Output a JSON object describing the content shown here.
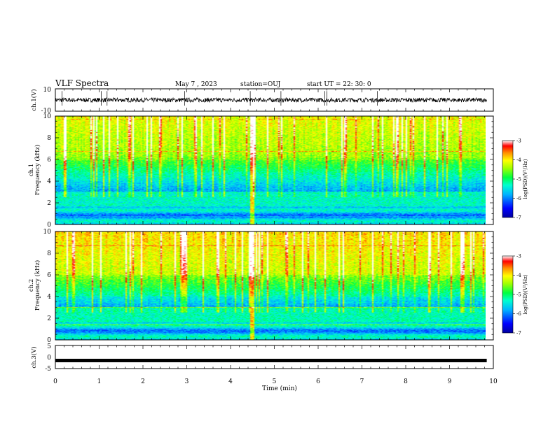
{
  "header": {
    "title": "VLF Spectra",
    "date": "May 7  , 2023",
    "station": "station=OUJ",
    "start": "start  UT  =   22: 30: 0"
  },
  "chart_data": [
    {
      "type": "line",
      "name": "ch1-waveform",
      "ylabel": "ch.1(V)",
      "ylim": [
        -10,
        10
      ],
      "yticks": [
        "10",
        "-10"
      ],
      "baseline": 0,
      "noise_amplitude": 2,
      "spikes_min": [
        0.15,
        1.05,
        1.18,
        2.95,
        4.45,
        5.15,
        6.15,
        6.2,
        7.35
      ]
    },
    {
      "type": "heatmap",
      "name": "ch1-spectrogram",
      "ylabel_top": "ch.1",
      "ylabel_bottom": "Frequency (kHz)",
      "ylim": [
        0,
        10
      ],
      "yticks": [
        "0",
        "2",
        "4",
        "6",
        "8",
        "10"
      ],
      "xlim_min": [
        0,
        9.85
      ],
      "colorbar": {
        "label": "log(PSD)(V²/Hz)",
        "range": [
          -7,
          -3
        ],
        "ticks": [
          "-3",
          "-4",
          "-5",
          "-6",
          "-7"
        ],
        "colormap": "rainbow"
      }
    },
    {
      "type": "heatmap",
      "name": "ch2-spectrogram",
      "ylabel_top": "ch.2",
      "ylabel_bottom": "Frequency (kHz)",
      "ylim": [
        0,
        10
      ],
      "yticks": [
        "0",
        "2",
        "4",
        "6",
        "8",
        "10"
      ],
      "xlim_min": [
        0,
        9.85
      ],
      "colorbar": {
        "label": "log(PSD)(V²/Hz)",
        "range": [
          -7,
          -3
        ],
        "ticks": [
          "-3",
          "-4",
          "-5",
          "-6",
          "-7"
        ],
        "colormap": "rainbow"
      }
    },
    {
      "type": "line",
      "name": "ch3-waveform",
      "ylabel": "ch.3(V)",
      "ylim": [
        -5,
        5
      ],
      "yticks": [
        "5",
        "0",
        "-5"
      ],
      "level": -1.5
    }
  ],
  "xaxis": {
    "label": "Time  (min)",
    "range": [
      0,
      10
    ],
    "ticks": [
      "0",
      "1",
      "2",
      "3",
      "4",
      "5",
      "6",
      "7",
      "8",
      "9",
      "10"
    ]
  },
  "colors": {
    "ink": "#000000",
    "background": "#ffffff"
  }
}
